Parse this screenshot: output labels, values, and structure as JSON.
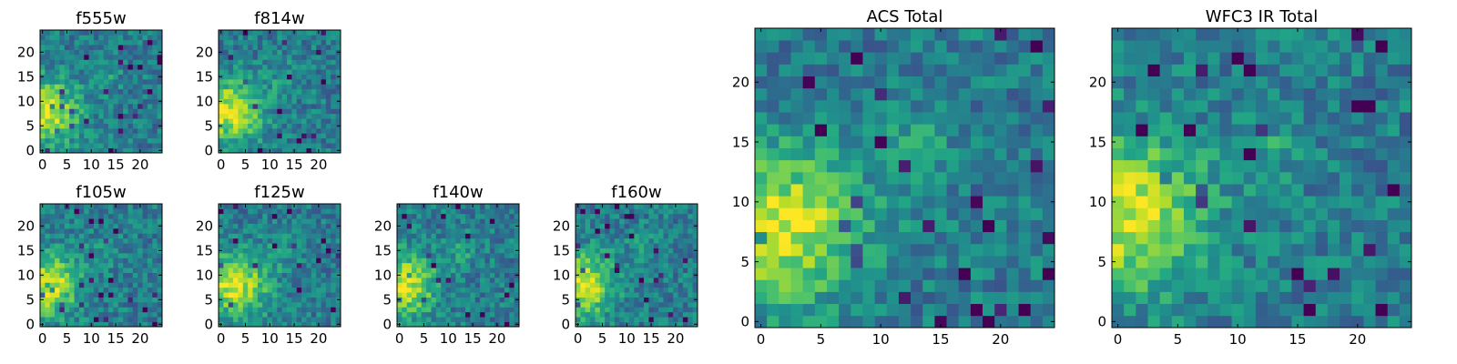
{
  "chart_data": [
    {
      "type": "heatmap",
      "title": "f555w",
      "x_ticks": [
        "0",
        "5",
        "10",
        "15",
        "20"
      ],
      "y_ticks": [
        "0",
        "5",
        "10",
        "15",
        "20"
      ],
      "xlim": [
        -0.5,
        24.5
      ],
      "ylim": [
        -0.5,
        24.5
      ],
      "colormap": "viridis",
      "peak": [
        1,
        8
      ],
      "grid": false
    },
    {
      "type": "heatmap",
      "title": "f814w",
      "x_ticks": [
        "0",
        "5",
        "10",
        "15",
        "20"
      ],
      "y_ticks": [
        "0",
        "5",
        "10",
        "15",
        "20"
      ],
      "xlim": [
        -0.5,
        24.5
      ],
      "ylim": [
        -0.5,
        24.5
      ],
      "colormap": "viridis",
      "peak": [
        2,
        8
      ],
      "grid": false
    },
    {
      "type": "heatmap",
      "title": "f105w",
      "x_ticks": [
        "0",
        "5",
        "10",
        "15",
        "20"
      ],
      "y_ticks": [
        "0",
        "5",
        "10",
        "15",
        "20"
      ],
      "xlim": [
        -0.5,
        24.5
      ],
      "ylim": [
        -0.5,
        24.5
      ],
      "colormap": "viridis",
      "peak": [
        1,
        8
      ],
      "grid": false
    },
    {
      "type": "heatmap",
      "title": "f125w",
      "x_ticks": [
        "0",
        "5",
        "10",
        "15",
        "20"
      ],
      "y_ticks": [
        "0",
        "5",
        "10",
        "15",
        "20"
      ],
      "xlim": [
        -0.5,
        24.5
      ],
      "ylim": [
        -0.5,
        24.5
      ],
      "colormap": "viridis",
      "peak": [
        3,
        8
      ],
      "grid": false
    },
    {
      "type": "heatmap",
      "title": "f140w",
      "x_ticks": [
        "0",
        "5",
        "10",
        "15",
        "20"
      ],
      "y_ticks": [
        "0",
        "5",
        "10",
        "15",
        "20"
      ],
      "xlim": [
        -0.5,
        24.5
      ],
      "ylim": [
        -0.5,
        24.5
      ],
      "colormap": "viridis",
      "peak": [
        1,
        8
      ],
      "grid": false
    },
    {
      "type": "heatmap",
      "title": "f160w",
      "x_ticks": [
        "0",
        "5",
        "10",
        "15",
        "20"
      ],
      "y_ticks": [
        "0",
        "5",
        "10",
        "15",
        "20"
      ],
      "xlim": [
        -0.5,
        24.5
      ],
      "ylim": [
        -0.5,
        24.5
      ],
      "colormap": "viridis",
      "peak": [
        1,
        8
      ],
      "grid": false
    },
    {
      "type": "heatmap",
      "title": "ACS Total",
      "x_ticks": [
        "0",
        "5",
        "10",
        "15",
        "20"
      ],
      "y_ticks": [
        "0",
        "5",
        "10",
        "15",
        "20"
      ],
      "xlim": [
        -0.5,
        24.5
      ],
      "ylim": [
        -0.5,
        24.5
      ],
      "colormap": "viridis",
      "peak": [
        2,
        8
      ],
      "grid": false
    },
    {
      "type": "heatmap",
      "title": "WFC3 IR Total",
      "x_ticks": [
        "0",
        "5",
        "10",
        "15",
        "20"
      ],
      "y_ticks": [
        "0",
        "5",
        "10",
        "15",
        "20"
      ],
      "xlim": [
        -0.5,
        24.5
      ],
      "ylim": [
        -0.5,
        24.5
      ],
      "colormap": "viridis",
      "peak": [
        1,
        9
      ],
      "grid": false
    }
  ]
}
